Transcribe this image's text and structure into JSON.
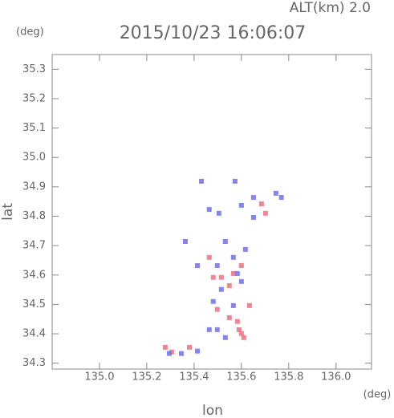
{
  "chart_data": {
    "type": "scatter",
    "title": "2015/10/23 16:06:07",
    "subtitle": "ALT(km) 2.0",
    "y_unit": "(deg)",
    "x_unit": "(deg)",
    "x_label": "lon",
    "y_label": "lat",
    "xlim": [
      134.8,
      136.15
    ],
    "ylim": [
      34.28,
      35.35
    ],
    "xticks": [
      {
        "value": 135,
        "label": "135.0"
      },
      135.2,
      135.4,
      135.6,
      135.8,
      {
        "value": 136,
        "label": "136.0"
      }
    ],
    "yticks": [
      34.3,
      34.4,
      34.5,
      34.6,
      34.7,
      34.8,
      34.9,
      {
        "value": 35,
        "label": "35.0"
      },
      35.1,
      35.2,
      35.3
    ],
    "series": [
      {
        "color": "#f07080",
        "x": [
          135.278,
          135.305,
          135.38,
          135.59,
          135.6,
          135.61,
          135.498,
          135.549,
          135.549,
          135.566,
          135.515,
          135.6,
          135.634,
          135.685,
          135.702,
          135.464,
          135.481,
          135.583
        ],
        "y": [
          34.354,
          34.338,
          34.354,
          34.414,
          34.401,
          34.387,
          34.483,
          34.455,
          34.564,
          34.605,
          34.592,
          34.632,
          34.496,
          34.842,
          34.81,
          34.66,
          34.592,
          34.442
        ]
      },
      {
        "color": "#7070f0",
        "x": [
          135.295,
          135.346,
          135.414,
          135.464,
          135.532,
          135.431,
          135.573,
          135.505,
          135.464,
          135.651,
          135.746,
          135.769,
          135.532,
          135.498,
          135.566,
          135.515,
          135.6,
          135.414,
          135.363,
          135.566,
          135.498,
          135.481,
          135.651,
          135.6,
          135.583,
          135.617
        ],
        "y": [
          34.333,
          34.333,
          34.341,
          34.414,
          34.387,
          34.919,
          34.919,
          34.81,
          34.823,
          34.864,
          34.878,
          34.864,
          34.714,
          34.632,
          34.66,
          34.551,
          34.578,
          34.632,
          34.714,
          34.496,
          34.414,
          34.51,
          34.796,
          34.837,
          34.605,
          34.687
        ]
      }
    ]
  }
}
